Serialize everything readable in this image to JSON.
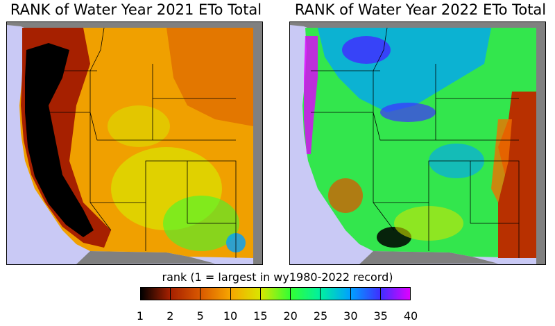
{
  "panels": [
    {
      "title": "RANK of Water Year 2021 ETo Total"
    },
    {
      "title": "RANK of Water Year 2022 ETo Total"
    }
  ],
  "legend": {
    "title": "rank (1 = largest in wy1980-2022 record)",
    "ticks": [
      "1",
      "2",
      "5",
      "10",
      "15",
      "20",
      "25",
      "30",
      "35",
      "40"
    ],
    "colors": [
      "#000000",
      "#a62000",
      "#d95800",
      "#f7a600",
      "#d9e600",
      "#33ff33",
      "#00f0a0",
      "#00a0ff",
      "#3f2fff",
      "#e000ff"
    ]
  },
  "colors": {
    "ocean": "#c9c9f5",
    "neighbor_land": "#808080",
    "border": "#000000"
  }
}
